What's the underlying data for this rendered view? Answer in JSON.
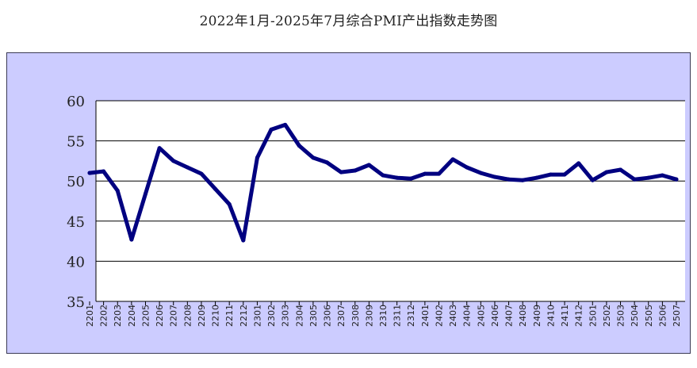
{
  "chart_data": {
    "type": "line",
    "title": "2022年1月-2025年7月综合PMI产出指数走势图",
    "xlabel": "",
    "ylabel": "",
    "ylim": [
      35,
      60
    ],
    "yticks": [
      35,
      40,
      45,
      50,
      55,
      60
    ],
    "grid": true,
    "legend": "none",
    "colors": {
      "panel_bg": "#ccccff",
      "plot_bg": "#ffffff",
      "line": "#000080",
      "grid": "#000000"
    },
    "categories": [
      "2201",
      "2202",
      "2203",
      "2204",
      "2205",
      "2206",
      "2207",
      "2208",
      "2209",
      "2210",
      "2211",
      "2212",
      "2301",
      "2302",
      "2303",
      "2304",
      "2305",
      "2306",
      "2307",
      "2308",
      "2309",
      "2310",
      "2311",
      "2312",
      "2401",
      "2402",
      "2403",
      "2404",
      "2405",
      "2406",
      "2407",
      "2408",
      "2409",
      "2410",
      "2411",
      "2412",
      "2501",
      "2502",
      "2503",
      "2504",
      "2505",
      "2506",
      "2507"
    ],
    "series": [
      {
        "values": [
          51.0,
          51.2,
          48.8,
          42.7,
          48.4,
          54.1,
          52.5,
          51.7,
          50.9,
          49.0,
          47.1,
          42.6,
          52.9,
          56.4,
          57.0,
          54.4,
          52.9,
          52.3,
          51.1,
          51.3,
          52.0,
          50.7,
          50.4,
          50.3,
          50.9,
          50.9,
          52.7,
          51.7,
          51.0,
          50.5,
          50.2,
          50.1,
          50.4,
          50.8,
          50.8,
          52.2,
          50.1,
          51.1,
          51.4,
          50.2,
          50.4,
          50.7,
          50.2
        ]
      }
    ]
  }
}
